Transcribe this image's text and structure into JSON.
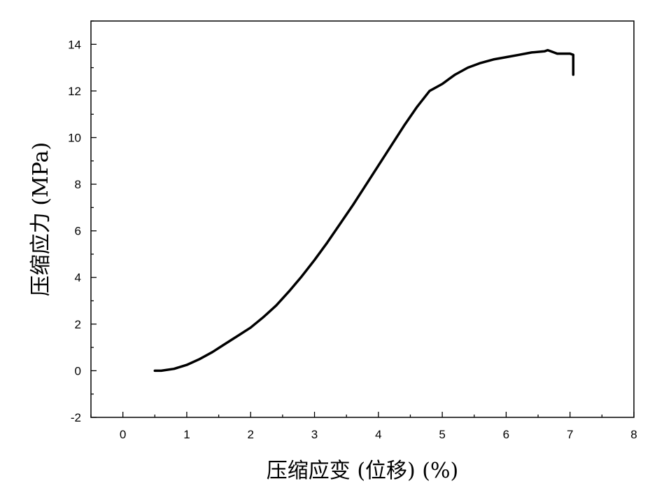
{
  "chart_data": {
    "type": "line",
    "title": "",
    "xlabel": "压缩应变 (位移) (%)",
    "ylabel": "压缩应力 (MPa)",
    "xlim": [
      -0.5,
      8
    ],
    "ylim": [
      -2,
      15
    ],
    "xticks": [
      0,
      1,
      2,
      3,
      4,
      5,
      6,
      7,
      8
    ],
    "yticks": [
      -2,
      0,
      2,
      4,
      6,
      8,
      10,
      12,
      14
    ],
    "grid": false,
    "legend": "none",
    "line_color": "#000000",
    "series": [
      {
        "x": [
          0.5,
          0.6,
          0.8,
          1.0,
          1.2,
          1.4,
          1.6,
          1.8,
          2.0,
          2.2,
          2.4,
          2.6,
          2.8,
          3.0,
          3.2,
          3.4,
          3.6,
          3.8,
          4.0,
          4.2,
          4.4,
          4.6,
          4.8,
          5.0,
          5.1,
          5.2,
          5.4,
          5.6,
          5.8,
          6.0,
          6.2,
          6.4,
          6.6,
          6.65,
          6.7,
          6.8,
          6.9,
          7.0,
          7.05,
          7.05,
          7.05
        ],
        "y": [
          0.0,
          0.0,
          0.08,
          0.25,
          0.5,
          0.8,
          1.15,
          1.5,
          1.85,
          2.3,
          2.8,
          3.4,
          4.05,
          4.75,
          5.5,
          6.3,
          7.1,
          7.95,
          8.8,
          9.65,
          10.5,
          11.3,
          12.0,
          12.3,
          12.5,
          12.7,
          13.0,
          13.2,
          13.35,
          13.45,
          13.55,
          13.65,
          13.7,
          13.75,
          13.7,
          13.6,
          13.6,
          13.6,
          13.55,
          13.0,
          12.7
        ]
      }
    ]
  }
}
